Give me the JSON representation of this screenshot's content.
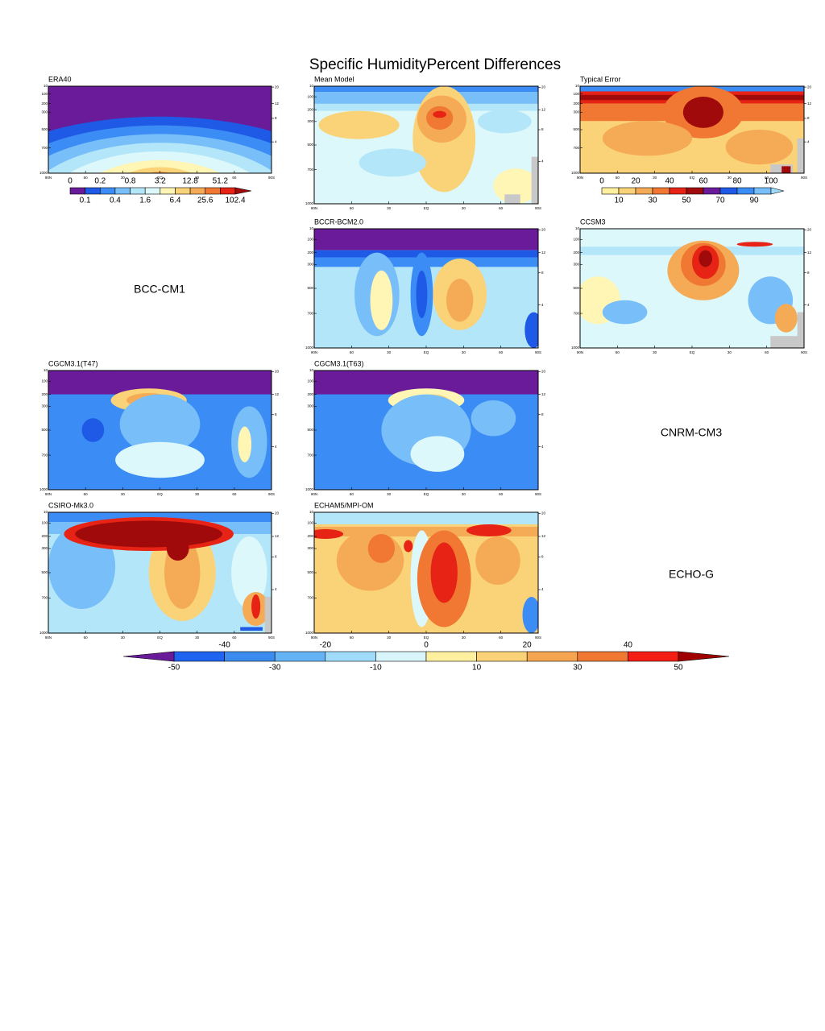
{
  "title": "Specific HumidityPercent Differences",
  "panels": [
    {
      "label": "ERA40"
    },
    {
      "label": "Mean Model"
    },
    {
      "label": "Typical Error"
    },
    {
      "label": "BCCR-BCM2.0"
    },
    {
      "label": "CCSM3"
    },
    {
      "label": "CGCM3.1(T47)"
    },
    {
      "label": "CGCM3.1(T63)"
    },
    {
      "label": "CSIRO-Mk3.0"
    },
    {
      "label": "ECHAM5/MPI-OM"
    }
  ],
  "missing_models": [
    "BCC-CM1",
    "CNRM-CM3",
    "ECHO-G"
  ],
  "latitude_labels": [
    "90N",
    "60",
    "30",
    "EQ",
    "30",
    "60",
    "90S"
  ],
  "pressure_labels": [
    10,
    100,
    200,
    300,
    500,
    700,
    1000
  ],
  "height_labels": [
    20,
    12,
    8,
    4
  ],
  "colorbars": {
    "era40": {
      "upper_labels": [
        0,
        0.2,
        0.8,
        3.2,
        12.8,
        51.2
      ],
      "lower_labels": [
        0.1,
        0.4,
        1.6,
        6.4,
        25.6,
        102.4
      ],
      "colors": [
        "#6a1b9a",
        "#1e5ae6",
        "#3c8cf5",
        "#78bef8",
        "#b4e6fa",
        "#dcf8fa",
        "#fff5b4",
        "#fad278",
        "#f5aa55",
        "#f07832",
        "#e62314"
      ],
      "over_color": "#a00a0a"
    },
    "typical_error": {
      "upper_labels": [
        0,
        20,
        40,
        60,
        80,
        100
      ],
      "lower_labels": [
        10,
        30,
        50,
        70,
        90
      ],
      "colors": [
        "#fff0a0",
        "#fad278",
        "#f5aa55",
        "#f07832",
        "#e62314",
        "#a00a0a",
        "#6a1b9a",
        "#1e5ae6",
        "#3c8cf5",
        "#78bef8"
      ],
      "over_color": "#a0dcfa"
    },
    "differences": {
      "upper_labels": [
        -40,
        -20,
        0,
        20,
        40
      ],
      "lower_labels": [
        -50,
        -30,
        -10,
        10,
        30,
        50
      ],
      "colors": [
        "#1e64f0",
        "#3c8cf0",
        "#64b4f5",
        "#a0dcfa",
        "#d7f5fa",
        "#fff0a0",
        "#fad278",
        "#f5a550",
        "#f07832",
        "#f51e14"
      ],
      "under_color": "#6a1b9a",
      "over_color": "#a00000"
    }
  }
}
